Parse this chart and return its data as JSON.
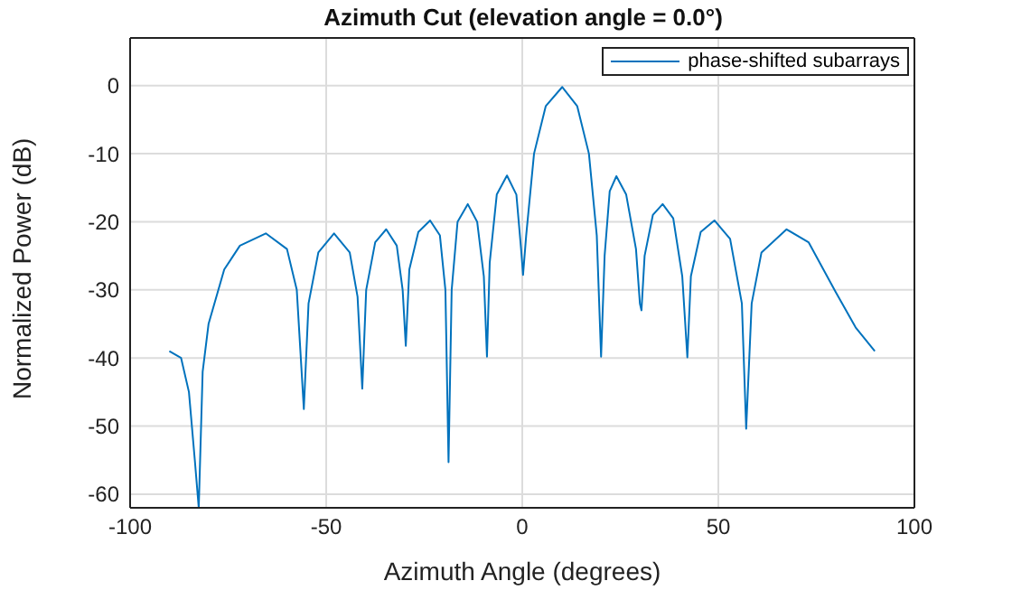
{
  "chart_data": {
    "type": "line",
    "title": "Azimuth Cut (elevation angle = 0.0°)",
    "xlabel": "Azimuth Angle (degrees)",
    "ylabel": "Normalized Power (dB)",
    "x": [
      -90,
      -87,
      -85,
      -83.5,
      -82.5,
      -81.5,
      -80,
      -76,
      -72,
      -65.4,
      -60,
      -57.5,
      -55.7,
      -54.5,
      -52,
      -48,
      -44,
      -42,
      -40.8,
      -39.8,
      -37.5,
      -34.7,
      -32,
      -30.5,
      -29.7,
      -28.8,
      -26.5,
      -23.5,
      -21,
      -19.6,
      -18.8,
      -18,
      -16.5,
      -13.9,
      -11.5,
      -9.8,
      -9,
      -8.3,
      -6.5,
      -3.9,
      -1.5,
      -0.3,
      0.2,
      1,
      3,
      6,
      10.2,
      14,
      17,
      19,
      20.1,
      21,
      22.3,
      24,
      26.5,
      29,
      30,
      30.4,
      31.2,
      33.3,
      35.8,
      38.5,
      40.8,
      42.1,
      43,
      45.5,
      49,
      53,
      56,
      57.1,
      58.5,
      61,
      67.4,
      73,
      79.9,
      85,
      89.9
    ],
    "series": [
      {
        "name": "phase-shifted subarrays",
        "color": "#0072bd",
        "values": [
          -39,
          -40,
          -45,
          -55,
          -62,
          -42,
          -35,
          -27,
          -23.5,
          -21.7,
          -24,
          -30,
          -47.5,
          -32,
          -24.5,
          -21.7,
          -24.5,
          -31,
          -44.5,
          -30,
          -23,
          -21.1,
          -23.5,
          -30,
          -38.2,
          -27,
          -21.5,
          -19.8,
          -22,
          -30,
          -55.3,
          -30,
          -20,
          -17.4,
          -20,
          -28,
          -39.8,
          -26,
          -16,
          -13.2,
          -16,
          -24,
          -27.8,
          -22,
          -10,
          -3,
          -0.2,
          -3,
          -10,
          -22,
          -39.8,
          -25,
          -15.5,
          -13.3,
          -16,
          -24,
          -32,
          -33,
          -25,
          -19,
          -17.4,
          -19.5,
          -28,
          -39.9,
          -28,
          -21.5,
          -19.8,
          -22.5,
          -32,
          -50.4,
          -32,
          -24.5,
          -21.1,
          -23,
          -30.3,
          -35.5,
          -39
        ]
      }
    ],
    "xlim": [
      -100,
      100
    ],
    "xticks": [
      -100,
      -50,
      0,
      50,
      100
    ],
    "ylim": [
      -62,
      7
    ],
    "yticks": [
      -60,
      -50,
      -40,
      -30,
      -20,
      -10,
      0
    ],
    "grid": true,
    "legend": "top right",
    "marker": "none",
    "line_style": "solid"
  }
}
